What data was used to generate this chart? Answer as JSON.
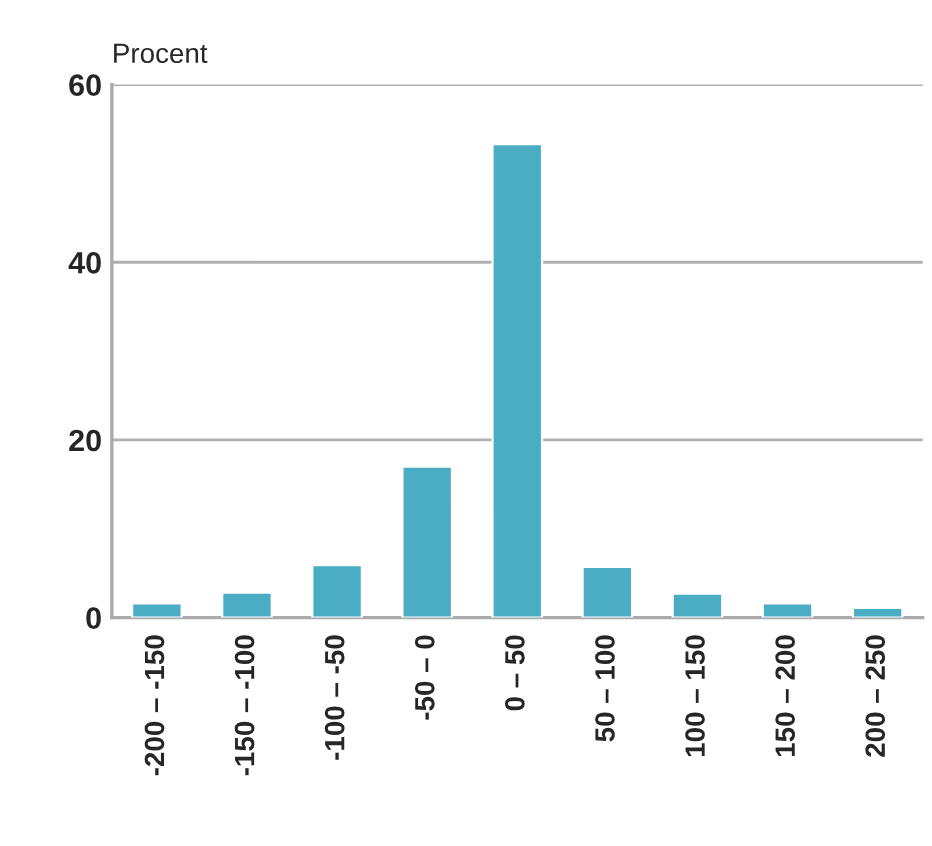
{
  "chart_data": {
    "type": "bar",
    "ylabel": "Procent",
    "categories": [
      "-200 – -150",
      "-150 – -100",
      "-100 – -50",
      "-50 – 0",
      "0 – 50",
      "50 – 100",
      "100 – 150",
      "150 – 200",
      "200 – 250"
    ],
    "values": [
      1.6,
      2.8,
      5.9,
      17.0,
      53.3,
      5.7,
      2.7,
      1.6,
      1.1
    ],
    "color": "#4badc4",
    "ylim": [
      0,
      60
    ],
    "yticks": [
      0,
      20,
      40,
      60
    ],
    "grid": "y"
  }
}
